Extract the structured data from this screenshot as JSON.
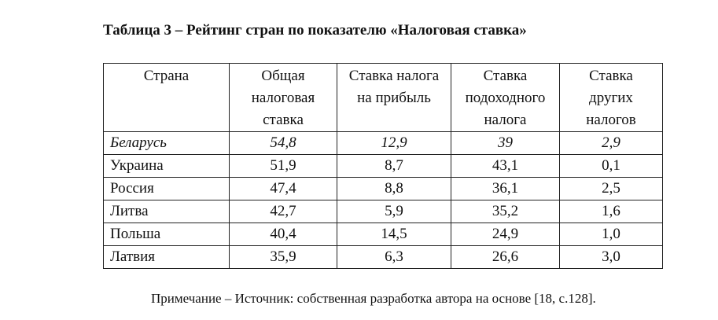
{
  "caption": "Таблица 3 – Рейтинг стран по показателю «Налоговая ставка»",
  "headers": {
    "country": "Страна",
    "total": [
      "Общая",
      "налоговая",
      "ставка"
    ],
    "profit": [
      "Ставка налога",
      "на прибыль"
    ],
    "income": [
      "Ставка",
      "подоходного",
      "налога"
    ],
    "other": [
      "Ставка",
      "других",
      "налогов"
    ]
  },
  "rows": [
    {
      "country": "Беларусь",
      "total": "54,8",
      "profit": "12,9",
      "income": "39",
      "other": "2,9"
    },
    {
      "country": "Украина",
      "total": "51,9",
      "profit": "8,7",
      "income": "43,1",
      "other": "0,1"
    },
    {
      "country": "Россия",
      "total": "47,4",
      "profit": "8,8",
      "income": "36,1",
      "other": "2,5"
    },
    {
      "country": "Литва",
      "total": "42,7",
      "profit": "5,9",
      "income": "35,2",
      "other": "1,6"
    },
    {
      "country": "Польша",
      "total": "40,4",
      "profit": "14,5",
      "income": "24,9",
      "other": "1,0"
    },
    {
      "country": "Латвия",
      "total": "35,9",
      "profit": "6,3",
      "income": "26,6",
      "other": "3,0"
    }
  ],
  "note": "Примечание – Источник: собственная разработка автора на основе [18, с.128]."
}
